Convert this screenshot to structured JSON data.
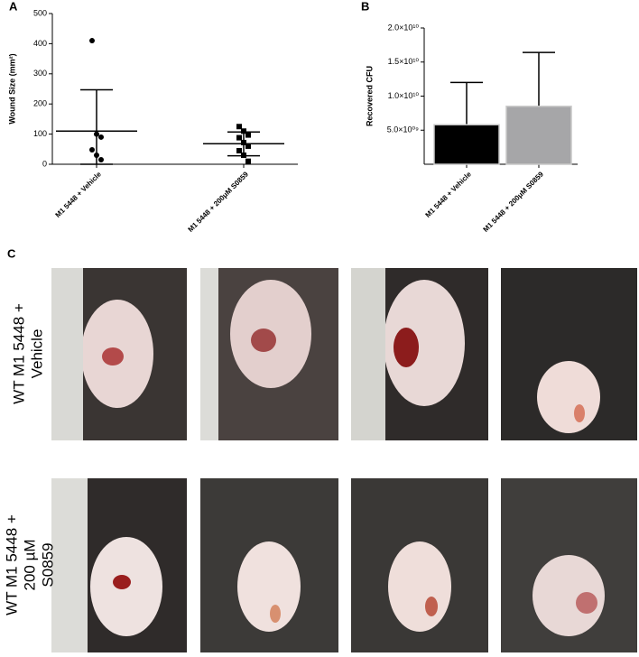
{
  "chart_data": [
    {
      "type": "dot",
      "panel": "A",
      "y_label": "Wound Size (mm²)",
      "categories": [
        "M1 5448 + Vehicle",
        "M1 5448 + 200μM S0859"
      ],
      "points": [
        [
          410,
          100,
          90,
          48,
          30,
          15
        ],
        [
          125,
          110,
          97,
          88,
          72,
          60,
          45,
          30,
          10
        ]
      ],
      "markers": [
        "circle",
        "square"
      ],
      "means": [
        110,
        68
      ],
      "error_ranges": [
        [
          0,
          247
        ],
        [
          28,
          107
        ]
      ],
      "color": "#000000",
      "ylim": [
        0,
        500
      ],
      "yticks": [
        0,
        100,
        200,
        300,
        400,
        500
      ]
    },
    {
      "type": "bar",
      "panel": "B",
      "y_label": "Recovered CFU",
      "categories": [
        "M1 5448 + Vehicle",
        "M1 5448 + 200μM S0859"
      ],
      "values": [
        5800000000,
        8500000000
      ],
      "errors": [
        6200000000,
        7900000000
      ],
      "colors": [
        "#000000",
        "#a6a6a8"
      ],
      "ylim": [
        0,
        20000000000
      ],
      "yticks": [
        {
          "value": 5000000000,
          "label": "5.0×10⁰⁹"
        },
        {
          "value": 10000000000,
          "label": "1.0×10¹⁰"
        },
        {
          "value": 15000000000,
          "label": "1.5×10¹⁰"
        },
        {
          "value": 20000000000,
          "label": "2.0×10¹⁰"
        }
      ]
    }
  ],
  "photo_panel": {
    "panel": "C",
    "rows": [
      {
        "label_lines": [
          "WT M1 5448 +",
          "Vehicle"
        ]
      },
      {
        "label_lines": [
          "WT M1 5448 +",
          "200 µM",
          "S0859"
        ]
      }
    ]
  }
}
